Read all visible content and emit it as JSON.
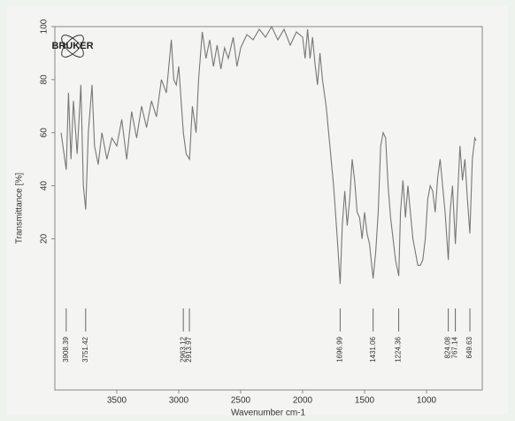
{
  "chart_data": {
    "type": "line",
    "logo": "BRUKER",
    "y_label": "Transmittance [%]",
    "x_label": "Wavenumber cm-1",
    "x": [
      3950,
      3920,
      3908,
      3890,
      3870,
      3850,
      3820,
      3790,
      3770,
      3751,
      3730,
      3700,
      3680,
      3650,
      3620,
      3580,
      3540,
      3500,
      3460,
      3420,
      3380,
      3340,
      3300,
      3260,
      3220,
      3180,
      3140,
      3100,
      3060,
      3040,
      3020,
      3000,
      2963,
      2940,
      2913,
      2890,
      2860,
      2840,
      2810,
      2780,
      2750,
      2720,
      2690,
      2660,
      2630,
      2600,
      2560,
      2530,
      2500,
      2450,
      2400,
      2350,
      2300,
      2250,
      2200,
      2150,
      2100,
      2050,
      2000,
      1980,
      1960,
      1940,
      1920,
      1900,
      1880,
      1860,
      1840,
      1810,
      1780,
      1750,
      1720,
      1697,
      1680,
      1660,
      1640,
      1620,
      1600,
      1580,
      1560,
      1540,
      1520,
      1500,
      1480,
      1460,
      1431,
      1410,
      1390,
      1370,
      1350,
      1330,
      1310,
      1290,
      1270,
      1250,
      1224,
      1210,
      1190,
      1170,
      1150,
      1130,
      1110,
      1090,
      1070,
      1050,
      1030,
      1010,
      990,
      970,
      950,
      930,
      910,
      890,
      870,
      850,
      824,
      810,
      790,
      767,
      750,
      730,
      710,
      690,
      670,
      650,
      630,
      610,
      600
    ],
    "series": [
      {
        "color": "#777777",
        "values": [
          60,
          50,
          46,
          75,
          50,
          72,
          52,
          78,
          40,
          31,
          60,
          78,
          55,
          48,
          60,
          50,
          58,
          55,
          65,
          50,
          68,
          58,
          70,
          62,
          72,
          66,
          80,
          75,
          95,
          80,
          78,
          85,
          60,
          52,
          50,
          70,
          60,
          80,
          98,
          88,
          95,
          85,
          93,
          84,
          92,
          88,
          96,
          85,
          92,
          97,
          95,
          99,
          96,
          100,
          95,
          99,
          93,
          98,
          96,
          88,
          99,
          88,
          96,
          86,
          78,
          90,
          80,
          70,
          55,
          40,
          20,
          3,
          25,
          38,
          25,
          35,
          50,
          42,
          30,
          28,
          20,
          30,
          22,
          18,
          5,
          15,
          30,
          55,
          60,
          58,
          40,
          28,
          20,
          12,
          6,
          30,
          42,
          28,
          40,
          30,
          20,
          15,
          10,
          10,
          12,
          20,
          35,
          40,
          38,
          30,
          43,
          50,
          40,
          30,
          12,
          30,
          40,
          18,
          35,
          55,
          42,
          50,
          35,
          22,
          50,
          58,
          57
        ]
      }
    ],
    "xlim": [
      4000,
      550
    ],
    "ylim": [
      -37,
      100
    ],
    "xticks": [
      3500,
      3000,
      2500,
      2000,
      1500,
      1000
    ],
    "yticks": [
      20,
      40,
      60,
      80,
      100
    ],
    "peaks": [
      {
        "value": 3908.39,
        "label": "3908.39"
      },
      {
        "value": 3751.42,
        "label": "3751.42"
      },
      {
        "value": 2963.12,
        "label": "2963.12"
      },
      {
        "value": 2913.97,
        "label": "2913.97"
      },
      {
        "value": 1696.99,
        "label": "1696.99"
      },
      {
        "value": 1431.06,
        "label": "1431.06"
      },
      {
        "value": 1224.36,
        "label": "1224.36"
      },
      {
        "value": 824.08,
        "label": "824.08"
      },
      {
        "value": 767.14,
        "label": "767.14"
      },
      {
        "value": 649.63,
        "label": "649.63"
      }
    ]
  }
}
